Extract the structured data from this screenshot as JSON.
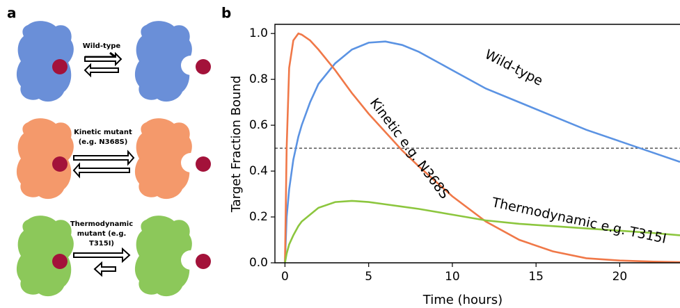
{
  "panel_labels": [
    "a",
    "b"
  ],
  "diagram": {
    "rows": [
      {
        "label": [
          "Wild-type"
        ]
      },
      {
        "label": [
          "Kinetic mutant",
          "(e.g. N368S)"
        ]
      },
      {
        "label": [
          "Thermodynamic",
          "mutant (e.g.",
          "T315I)"
        ]
      }
    ]
  },
  "chart_data": {
    "type": "line",
    "xlabel": "Time (hours)",
    "ylabel": "Target Fraction Bound",
    "x": [
      0,
      0.1,
      0.25,
      0.5,
      0.8,
      1,
      1.5,
      2,
      3,
      4,
      5,
      6,
      7,
      8,
      10,
      12,
      14,
      16,
      18,
      20,
      22,
      23.6
    ],
    "series": [
      {
        "name": "Wild-type",
        "color": "#5b93e3",
        "values": [
          0,
          0.2,
          0.32,
          0.45,
          0.55,
          0.6,
          0.7,
          0.78,
          0.87,
          0.93,
          0.96,
          0.965,
          0.95,
          0.92,
          0.84,
          0.76,
          0.7,
          0.64,
          0.58,
          0.53,
          0.48,
          0.44
        ]
      },
      {
        "name": "Kinetic e.g. N368S",
        "color": "#f07848",
        "values": [
          0,
          0.5,
          0.85,
          0.97,
          1.0,
          0.995,
          0.97,
          0.93,
          0.84,
          0.74,
          0.65,
          0.57,
          0.49,
          0.42,
          0.29,
          0.18,
          0.1,
          0.05,
          0.02,
          0.01,
          0.005,
          0.003
        ]
      },
      {
        "name": "Thermodynamic e.g. T315I",
        "color": "#8cc63e",
        "values": [
          0,
          0.04,
          0.08,
          0.12,
          0.16,
          0.18,
          0.21,
          0.24,
          0.265,
          0.27,
          0.265,
          0.255,
          0.245,
          0.235,
          0.21,
          0.185,
          0.17,
          0.16,
          0.15,
          0.14,
          0.13,
          0.12
        ]
      }
    ],
    "hline": 0.5,
    "xlim": [
      -0.6,
      23.6
    ],
    "ylim": [
      0,
      1.04
    ],
    "xticks": [
      0,
      5,
      10,
      15,
      20
    ],
    "yticks": [
      {
        "value": 0,
        "label": "0.0"
      },
      {
        "value": 0.2,
        "label": "0.2"
      },
      {
        "value": 0.4,
        "label": "0.4"
      },
      {
        "value": 0.6,
        "label": "0.6"
      },
      {
        "value": 0.8,
        "label": "0.8"
      },
      {
        "value": 1.0,
        "label": "1.0"
      }
    ]
  }
}
